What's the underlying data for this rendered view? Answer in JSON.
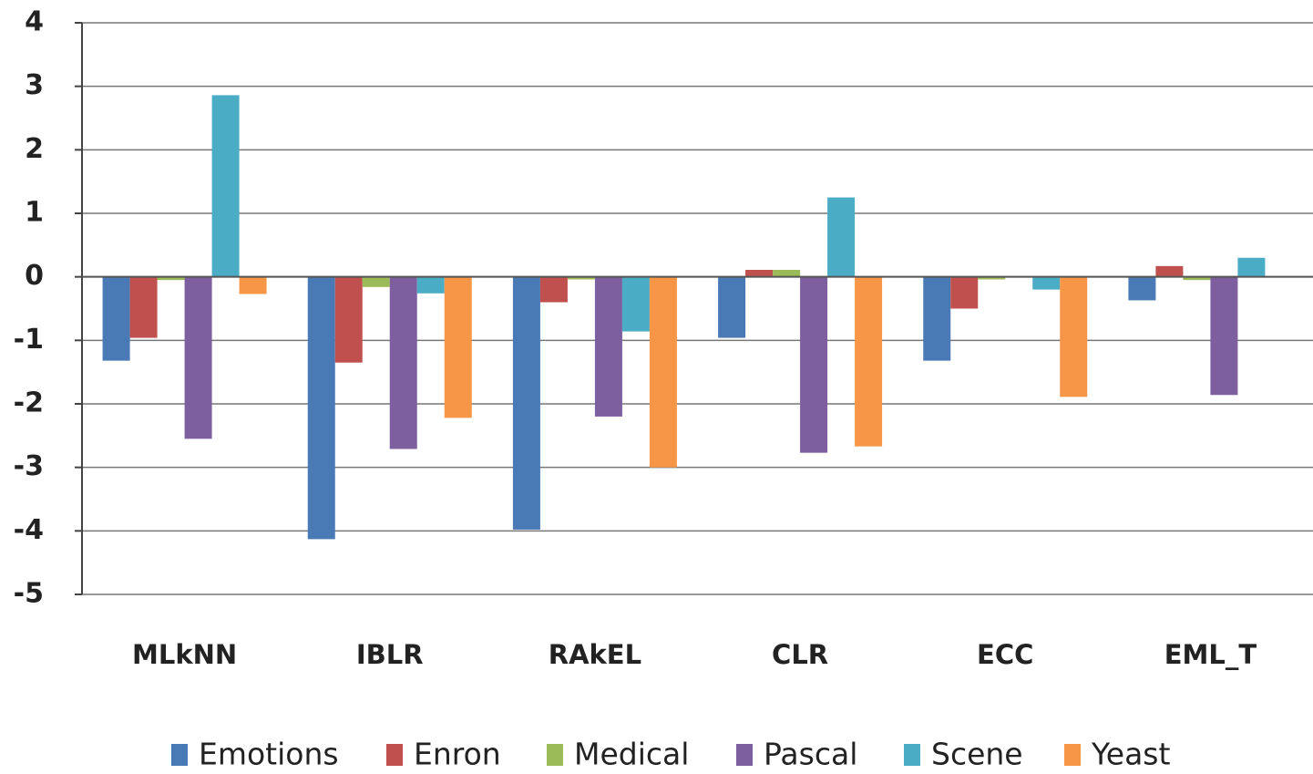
{
  "chart_data": {
    "type": "bar",
    "categories": [
      "MLkNN",
      "IBLR",
      "RAkEL",
      "CLR",
      "ECC",
      "EML_T"
    ],
    "series": [
      {
        "name": "Emotions",
        "color": "#4a7ab5",
        "values": [
          -1.32,
          -4.13,
          -3.98,
          -0.96,
          -1.32,
          -0.37
        ]
      },
      {
        "name": "Enron",
        "color": "#c0504d",
        "values": [
          -0.96,
          -1.35,
          -0.4,
          0.11,
          -0.5,
          0.17
        ]
      },
      {
        "name": "Medical",
        "color": "#9bbb59",
        "values": [
          -0.05,
          -0.16,
          -0.04,
          0.11,
          -0.04,
          -0.05
        ]
      },
      {
        "name": "Pascal",
        "color": "#7d5fa0",
        "values": [
          -2.55,
          -2.71,
          -2.2,
          -2.77,
          0,
          -1.86
        ]
      },
      {
        "name": "Scene",
        "color": "#4bacc6",
        "values": [
          2.86,
          -0.26,
          -0.86,
          1.25,
          -0.2,
          0.3
        ]
      },
      {
        "name": "Yeast",
        "color": "#f79646",
        "values": [
          -0.27,
          -2.22,
          -3.0,
          -2.67,
          -1.89,
          0
        ]
      }
    ],
    "ylim": [
      -5,
      4
    ],
    "yticks": [
      -5,
      -4,
      -3,
      -2,
      -1,
      0,
      1,
      2,
      3,
      4
    ],
    "grid": true,
    "legend": "bottom"
  }
}
